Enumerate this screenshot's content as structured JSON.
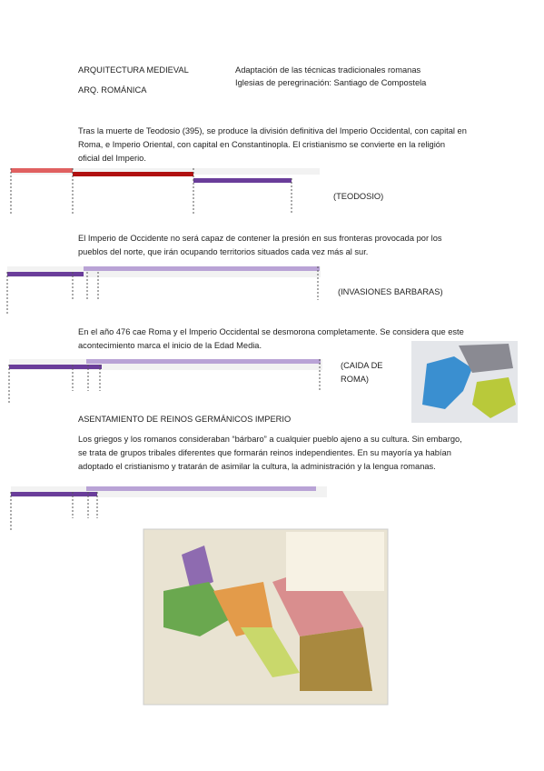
{
  "header": {
    "title": "ARQUITECTURA MEDIEVAL",
    "subtitle": "ARQ. ROMÁNICA",
    "notes": [
      "Adaptación de las técnicas tradicionales romanas",
      "Iglesias de peregrinación: Santiago de Compostela"
    ]
  },
  "sections": [
    {
      "text": "Tras la muerte de Teodosio (395), se produce la división definitiva del Imperio Occidental, con capital en Roma, e Imperio Oriental, con capital en Constantinopla. El cristianismo se convierte en la religión oficial del Imperio.",
      "label": "(TEODOSIO)"
    },
    {
      "text": "El Imperio de Occidente no será capaz de contener la presión en sus fronteras provocada por los pueblos del norte, que irán ocupando territorios situados cada vez más al sur.",
      "label": "(INVASIONES BARBARAS)"
    },
    {
      "text": "En el año 476 cae Roma y el Imperio Occidental se desmorona completamente. Se considera que este acontecimiento marca el inicio de la Edad Media.",
      "label": "(CAIDA DE ROMA)"
    },
    {
      "heading": "ASENTAMIENTO DE REINOS GERMÁNICOS IMPERIO",
      "text": "Los griegos y los romanos consideraban “bárbaro” a cualquier pueblo ajeno a su cultura. Sin embargo, se trata de grupos tribales diferentes que formarán reinos independientes. En su mayoría ya habían adoptado el cristianismo y tratarán de asimilar la cultura, la administración y la lengua romanas."
    }
  ]
}
